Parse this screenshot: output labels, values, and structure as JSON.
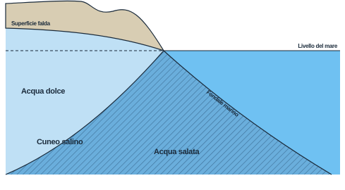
{
  "labels": {
    "water_table": "Superficie falda",
    "sea_level": "Livello del mare",
    "fresh_water": "Acqua dolce",
    "sea_floor": "Fondale marino",
    "salt_wedge": "Cuneo salino",
    "salt_water": "Acqua salata"
  }
}
